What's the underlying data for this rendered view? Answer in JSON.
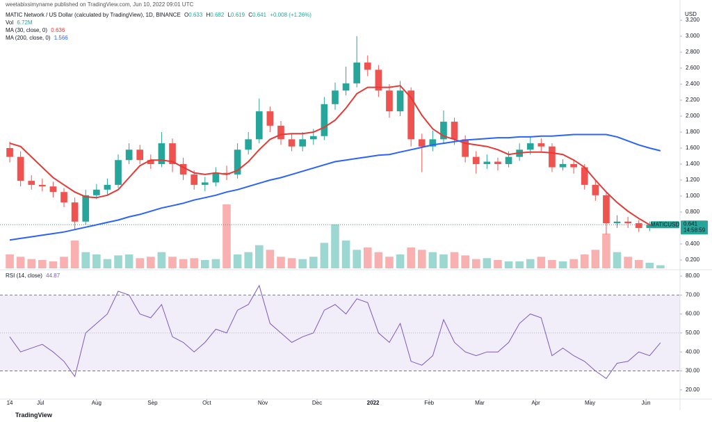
{
  "header": {
    "publisher": "weetabixsimyname published on TradingView.com, Jun 10, 2022 09:01 UTC",
    "brand": "TradingView"
  },
  "chart_data": {
    "type": "candlestick",
    "title": "MATIC Network / US Dollar (calculated by TradingView), 1D, BINANCE",
    "ohlc_labels": [
      "O",
      "H",
      "L",
      "C"
    ],
    "change_label": "+0.008 (+1.26%)",
    "y_unit": "USD",
    "up_color": "#26a69a",
    "down_color": "#ef5350",
    "x": [
      0,
      6,
      12,
      18,
      24,
      30,
      36,
      42,
      48,
      54,
      60,
      66,
      72,
      78,
      84,
      90,
      96,
      102,
      108,
      114,
      120,
      126,
      132,
      138,
      144,
      150,
      156,
      162,
      168,
      174,
      180,
      186,
      192,
      198,
      204,
      210,
      216,
      222,
      228,
      234,
      240,
      246,
      252,
      258,
      264,
      270,
      276,
      282,
      288,
      294,
      300,
      306,
      312,
      318,
      324,
      330,
      336,
      342,
      348,
      354,
      360
    ],
    "xlim": [
      -5.4,
      370.8
    ],
    "xticks": [
      {
        "value": 0,
        "label": "14"
      },
      {
        "value": 17,
        "label": "Jul"
      },
      {
        "value": 48,
        "label": "Aug"
      },
      {
        "value": 79,
        "label": "Sep"
      },
      {
        "value": 109,
        "label": "Oct"
      },
      {
        "value": 140,
        "label": "Nov"
      },
      {
        "value": 170,
        "label": "Dec"
      },
      {
        "value": 201,
        "label": "2022"
      },
      {
        "value": 232,
        "label": "Feb"
      },
      {
        "value": 260,
        "label": "Mar"
      },
      {
        "value": 291,
        "label": "Apr"
      },
      {
        "value": 321,
        "label": "May"
      },
      {
        "value": 352,
        "label": "Jun"
      }
    ],
    "open": [
      1.6,
      1.49,
      1.19,
      1.14,
      1.12,
      1.05,
      0.92,
      0.68,
      1.01,
      1.08,
      1.14,
      1.45,
      1.58,
      1.45,
      1.4,
      1.66,
      1.4,
      1.27,
      1.14,
      1.17,
      1.29,
      1.27,
      1.58,
      1.71,
      2.06,
      1.88,
      1.71,
      1.62,
      1.71,
      1.75,
      2.15,
      2.32,
      2.41,
      2.67,
      2.58,
      2.32,
      2.06,
      2.32,
      1.71,
      1.62,
      1.71,
      1.93,
      1.71,
      1.49,
      1.4,
      1.43,
      1.4,
      1.49,
      1.58,
      1.66,
      1.62,
      1.36,
      1.4,
      1.36,
      1.14,
      1.01,
      0.66,
      0.68,
      0.66,
      0.6,
      0.633
    ],
    "high": [
      1.68,
      1.56,
      1.26,
      1.22,
      1.18,
      1.1,
      0.98,
      1.08,
      1.15,
      1.22,
      1.52,
      1.66,
      1.64,
      1.52,
      1.8,
      1.72,
      1.48,
      1.32,
      1.24,
      1.36,
      1.38,
      1.66,
      1.8,
      2.22,
      2.12,
      1.94,
      1.78,
      1.8,
      1.84,
      2.24,
      2.42,
      2.62,
      3.0,
      2.76,
      2.64,
      2.4,
      2.44,
      2.36,
      1.78,
      1.82,
      2.07,
      1.98,
      1.76,
      1.56,
      1.52,
      1.48,
      1.56,
      1.66,
      1.75,
      1.72,
      1.66,
      1.46,
      1.46,
      1.4,
      1.2,
      1.05,
      0.76,
      0.74,
      0.7,
      0.68,
      0.682
    ],
    "low": [
      1.42,
      1.12,
      1.08,
      1.06,
      0.98,
      0.86,
      0.58,
      0.64,
      0.96,
      1.02,
      1.1,
      1.4,
      1.4,
      1.34,
      1.36,
      1.3,
      1.2,
      1.08,
      1.06,
      1.12,
      1.2,
      1.22,
      1.52,
      1.66,
      1.8,
      1.64,
      1.56,
      1.56,
      1.64,
      1.7,
      2.08,
      2.26,
      2.36,
      2.5,
      2.24,
      1.98,
      2.0,
      1.62,
      1.3,
      1.56,
      1.66,
      1.64,
      1.42,
      1.28,
      1.34,
      1.32,
      1.36,
      1.44,
      1.52,
      1.56,
      1.3,
      1.32,
      1.28,
      1.08,
      0.94,
      0.52,
      0.6,
      0.6,
      0.55,
      0.56,
      0.619
    ],
    "close": [
      1.49,
      1.19,
      1.14,
      1.12,
      1.05,
      0.92,
      0.68,
      1.01,
      1.08,
      1.14,
      1.45,
      1.58,
      1.45,
      1.4,
      1.66,
      1.4,
      1.27,
      1.14,
      1.17,
      1.29,
      1.27,
      1.58,
      1.71,
      2.06,
      1.88,
      1.71,
      1.62,
      1.71,
      1.75,
      2.15,
      2.32,
      2.41,
      2.67,
      2.58,
      2.32,
      2.06,
      2.32,
      1.71,
      1.62,
      1.71,
      1.93,
      1.71,
      1.49,
      1.4,
      1.43,
      1.4,
      1.49,
      1.58,
      1.66,
      1.62,
      1.36,
      1.4,
      1.36,
      1.14,
      1.01,
      0.66,
      0.68,
      0.66,
      0.6,
      0.64,
      0.641
    ],
    "ylim": [
      0.095,
      3.366
    ],
    "yticks": [
      {
        "value": 0.2,
        "label": "0.200"
      },
      {
        "value": 0.4,
        "label": "0.400"
      },
      {
        "value": 0.8,
        "label": "0.800"
      },
      {
        "value": 1.0,
        "label": "1.000"
      },
      {
        "value": 1.2,
        "label": "1.200"
      },
      {
        "value": 1.4,
        "label": "1.400"
      },
      {
        "value": 1.6,
        "label": "1.600"
      },
      {
        "value": 1.8,
        "label": "1.800"
      },
      {
        "value": 2.0,
        "label": "2.000"
      },
      {
        "value": 2.2,
        "label": "2.200"
      },
      {
        "value": 2.4,
        "label": "2.400"
      },
      {
        "value": 2.6,
        "label": "2.600"
      },
      {
        "value": 2.8,
        "label": "2.800"
      },
      {
        "value": 3.0,
        "label": "3.000"
      },
      {
        "value": 3.2,
        "label": "3.200"
      }
    ],
    "series": [
      {
        "name": "MA (30, close, 0)",
        "color": "#e53935",
        "values": [
          1.66,
          1.62,
          1.49,
          1.36,
          1.23,
          1.14,
          1.05,
          0.99,
          0.98,
          1.01,
          1.08,
          1.23,
          1.38,
          1.45,
          1.45,
          1.43,
          1.36,
          1.29,
          1.27,
          1.29,
          1.27,
          1.32,
          1.43,
          1.58,
          1.71,
          1.77,
          1.78,
          1.78,
          1.8,
          1.86,
          1.95,
          2.1,
          2.28,
          2.36,
          2.36,
          2.36,
          2.38,
          2.23,
          2.01,
          1.84,
          1.75,
          1.71,
          1.66,
          1.64,
          1.62,
          1.58,
          1.52,
          1.54,
          1.55,
          1.55,
          1.54,
          1.52,
          1.45,
          1.36,
          1.2,
          1.05,
          0.92,
          0.81,
          0.72,
          0.64,
          0.636
        ]
      },
      {
        "name": "MA (200, close, 0)",
        "color": "#2962ff",
        "values": [
          0.45,
          0.47,
          0.49,
          0.51,
          0.53,
          0.55,
          0.58,
          0.61,
          0.64,
          0.67,
          0.7,
          0.74,
          0.77,
          0.81,
          0.85,
          0.88,
          0.91,
          0.95,
          0.98,
          1.01,
          1.05,
          1.08,
          1.12,
          1.16,
          1.2,
          1.23,
          1.27,
          1.31,
          1.35,
          1.39,
          1.43,
          1.45,
          1.47,
          1.49,
          1.51,
          1.52,
          1.55,
          1.58,
          1.61,
          1.64,
          1.66,
          1.68,
          1.7,
          1.71,
          1.72,
          1.73,
          1.73,
          1.74,
          1.74,
          1.75,
          1.75,
          1.76,
          1.77,
          1.77,
          1.77,
          1.77,
          1.74,
          1.69,
          1.64,
          1.6,
          1.566
        ]
      }
    ],
    "volume": {
      "name": "Vol",
      "last_value_label": "6.72M",
      "ylim": [
        0,
        150
      ],
      "values": [
        30,
        25,
        20,
        18,
        15,
        25,
        60,
        35,
        30,
        20,
        28,
        30,
        22,
        25,
        35,
        25,
        20,
        22,
        18,
        20,
        138,
        30,
        35,
        50,
        40,
        25,
        22,
        20,
        25,
        55,
        95,
        60,
        40,
        45,
        35,
        25,
        30,
        45,
        40,
        35,
        30,
        35,
        28,
        20,
        22,
        18,
        15,
        15,
        20,
        25,
        18,
        15,
        20,
        30,
        40,
        75,
        35,
        25,
        18,
        12,
        6.72
      ]
    },
    "last_price": {
      "symbol": "MATICUSD",
      "countdown": "14:58:59"
    },
    "rsi": {
      "name": "RSI (14, close)",
      "color": "#7e57c2",
      "values": [
        48,
        40,
        42,
        44,
        40,
        35,
        27,
        50,
        55,
        60,
        72,
        70,
        60,
        58,
        65,
        48,
        45,
        40,
        45,
        52,
        50,
        62,
        65,
        75,
        55,
        50,
        45,
        48,
        50,
        62,
        65,
        60,
        68,
        66,
        50,
        45,
        55,
        35,
        33,
        38,
        57,
        45,
        40,
        38,
        40,
        40,
        45,
        55,
        60,
        58,
        38,
        42,
        38,
        35,
        30,
        26,
        34,
        35,
        40,
        38,
        44.87
      ],
      "ylim": [
        15.5,
        82.6
      ],
      "yticks": [
        {
          "value": 20,
          "label": "20.00"
        },
        {
          "value": 30,
          "label": "30.00"
        },
        {
          "value": 40,
          "label": "40.00"
        },
        {
          "value": 50,
          "label": "50.00"
        },
        {
          "value": 60,
          "label": "60.00"
        },
        {
          "value": 70,
          "label": "70.00"
        },
        {
          "value": 80,
          "label": "80.00"
        }
      ],
      "band": [
        30,
        70
      ],
      "mid": 50
    }
  }
}
